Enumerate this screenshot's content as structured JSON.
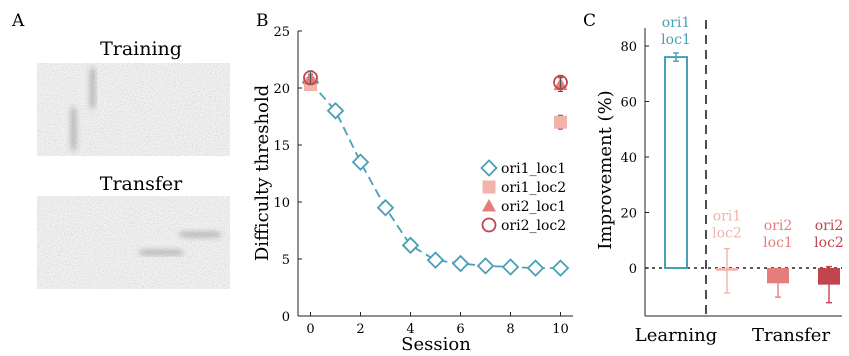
{
  "panels": {
    "a": {
      "letter": "A",
      "training_label": "Training",
      "transfer_label": "Transfer"
    },
    "b": {
      "letter": "B"
    },
    "c": {
      "letter": "C"
    }
  },
  "chart_data": [
    {
      "type": "line",
      "panel": "B",
      "xlabel": "Session",
      "ylabel": "Difficulty threshold",
      "xlim": [
        -0.5,
        10.5
      ],
      "ylim": [
        0,
        25
      ],
      "xticks": [
        0,
        2,
        4,
        6,
        8,
        10
      ],
      "yticks": [
        0,
        5,
        10,
        15,
        20,
        25
      ],
      "legend_position": "right",
      "grid": false,
      "series": [
        {
          "name": "ori1_loc1",
          "marker": "diamond",
          "color": "#4a9fb5",
          "line": "dashed",
          "x": [
            0,
            1,
            2,
            3,
            4,
            5,
            6,
            7,
            8,
            9,
            10
          ],
          "y": [
            20.5,
            18.0,
            13.5,
            9.5,
            6.2,
            4.9,
            4.6,
            4.4,
            4.3,
            4.2,
            4.2
          ],
          "err": [
            0.4,
            0.5,
            0.5,
            0.5,
            0.3,
            0.3,
            0.3,
            0.3,
            0.3,
            0.3,
            0.3
          ]
        },
        {
          "name": "ori1_loc2",
          "marker": "square",
          "color": "#f2b3aa",
          "x": [
            0,
            10
          ],
          "y": [
            20.3,
            17.0
          ],
          "err": [
            0.4,
            0.6
          ]
        },
        {
          "name": "ori2_loc1",
          "marker": "triangle",
          "color": "#e57d7b",
          "x": [
            0,
            10
          ],
          "y": [
            20.8,
            20.3
          ],
          "err": [
            0.4,
            0.6
          ]
        },
        {
          "name": "ori2_loc2",
          "marker": "circle",
          "color": "#c2454d",
          "x": [
            0,
            10
          ],
          "y": [
            20.9,
            20.5
          ],
          "err": [
            0.6,
            0.6
          ]
        }
      ]
    },
    {
      "type": "bar",
      "panel": "C",
      "ylabel": "Improvement (%)",
      "ylim": [
        -20,
        90
      ],
      "yticks": [
        0,
        20,
        40,
        60,
        80
      ],
      "group_labels": [
        "Learning",
        "Transfer"
      ],
      "grid": false,
      "bars": [
        {
          "label_line1": "ori1",
          "label_line2": "loc1",
          "value": 76,
          "err": 1.5,
          "color": "#4a9fb5",
          "style": "outline"
        },
        {
          "label_line1": "ori1",
          "label_line2": "loc2",
          "value": -1,
          "err": 8,
          "color": "#f2b3aa",
          "style": "filled"
        },
        {
          "label_line1": "ori2",
          "label_line2": "loc1",
          "value": -5.5,
          "err": 5,
          "color": "#e57d7b",
          "style": "filled"
        },
        {
          "label_line1": "ori2",
          "label_line2": "loc2",
          "value": -6,
          "err": 6.5,
          "color": "#c2454d",
          "style": "filled"
        }
      ]
    }
  ]
}
